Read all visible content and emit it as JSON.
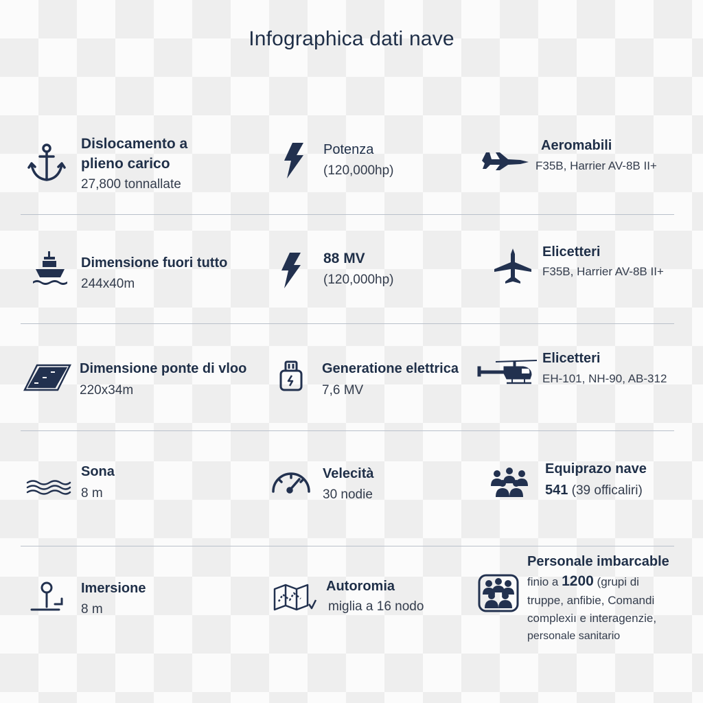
{
  "title": "Infographica dati nave",
  "items": {
    "displacement": {
      "label_line1": "Dislocamento a",
      "label_line2": "plieno carico",
      "value": "27,800 tonnallate",
      "icon": "anchor-icon"
    },
    "power1": {
      "label": "Potenza",
      "value": "(120,000hp)",
      "icon": "lightning-icon"
    },
    "aircraft": {
      "label": "Aeromabili",
      "value": "F35B, Harrier AV-8B II+",
      "icon": "fighter-jet-icon"
    },
    "dimension_overall": {
      "label": "Dimensione fuori tutto",
      "value": "244x40m",
      "icon": "ship-icon"
    },
    "power2": {
      "label": "88 MV",
      "value": "(120,000hp)",
      "icon": "lightning-icon"
    },
    "helicopters1": {
      "label": "Elicetteri",
      "value": "F35B, Harrier AV-8B II+",
      "icon": "jet-top-view-icon"
    },
    "flight_deck": {
      "label": "Dimensione ponte di vloo",
      "value": "220x34m",
      "icon": "flight-deck-icon"
    },
    "electric": {
      "label": "Generatione elettrica",
      "value": "7,6 MV",
      "icon": "battery-icon"
    },
    "helicopters2": {
      "label": "Elicetteri",
      "value": "EH-101, NH-90, AB-312",
      "icon": "helicopter-icon"
    },
    "sonar": {
      "label": "Sona",
      "value": "8 m",
      "icon": "waves-icon"
    },
    "speed": {
      "label": "Velecità",
      "value": "30 nodie",
      "icon": "speedometer-icon"
    },
    "crew": {
      "label": "Equiprazo nave",
      "value_bold": "541",
      "value_rest": " (39 officaliri)",
      "icon": "crew-group-icon"
    },
    "draft": {
      "label": "Imersione",
      "value": "8 m",
      "icon": "draft-icon"
    },
    "autonomy": {
      "label": "Autoromia",
      "value": "miglia a 16 nodo",
      "icon": "map-icon"
    },
    "personnel": {
      "label": "Personale imbarcable",
      "line1_pre": "finio a ",
      "line1_bold": "1200",
      "line1_post": " (grupi di",
      "line2": "truppe, anfibie, Comandi",
      "line3": "complexiı e interagenzie,",
      "line4": "personale sanitario",
      "icon": "personnel-group-icon"
    }
  }
}
